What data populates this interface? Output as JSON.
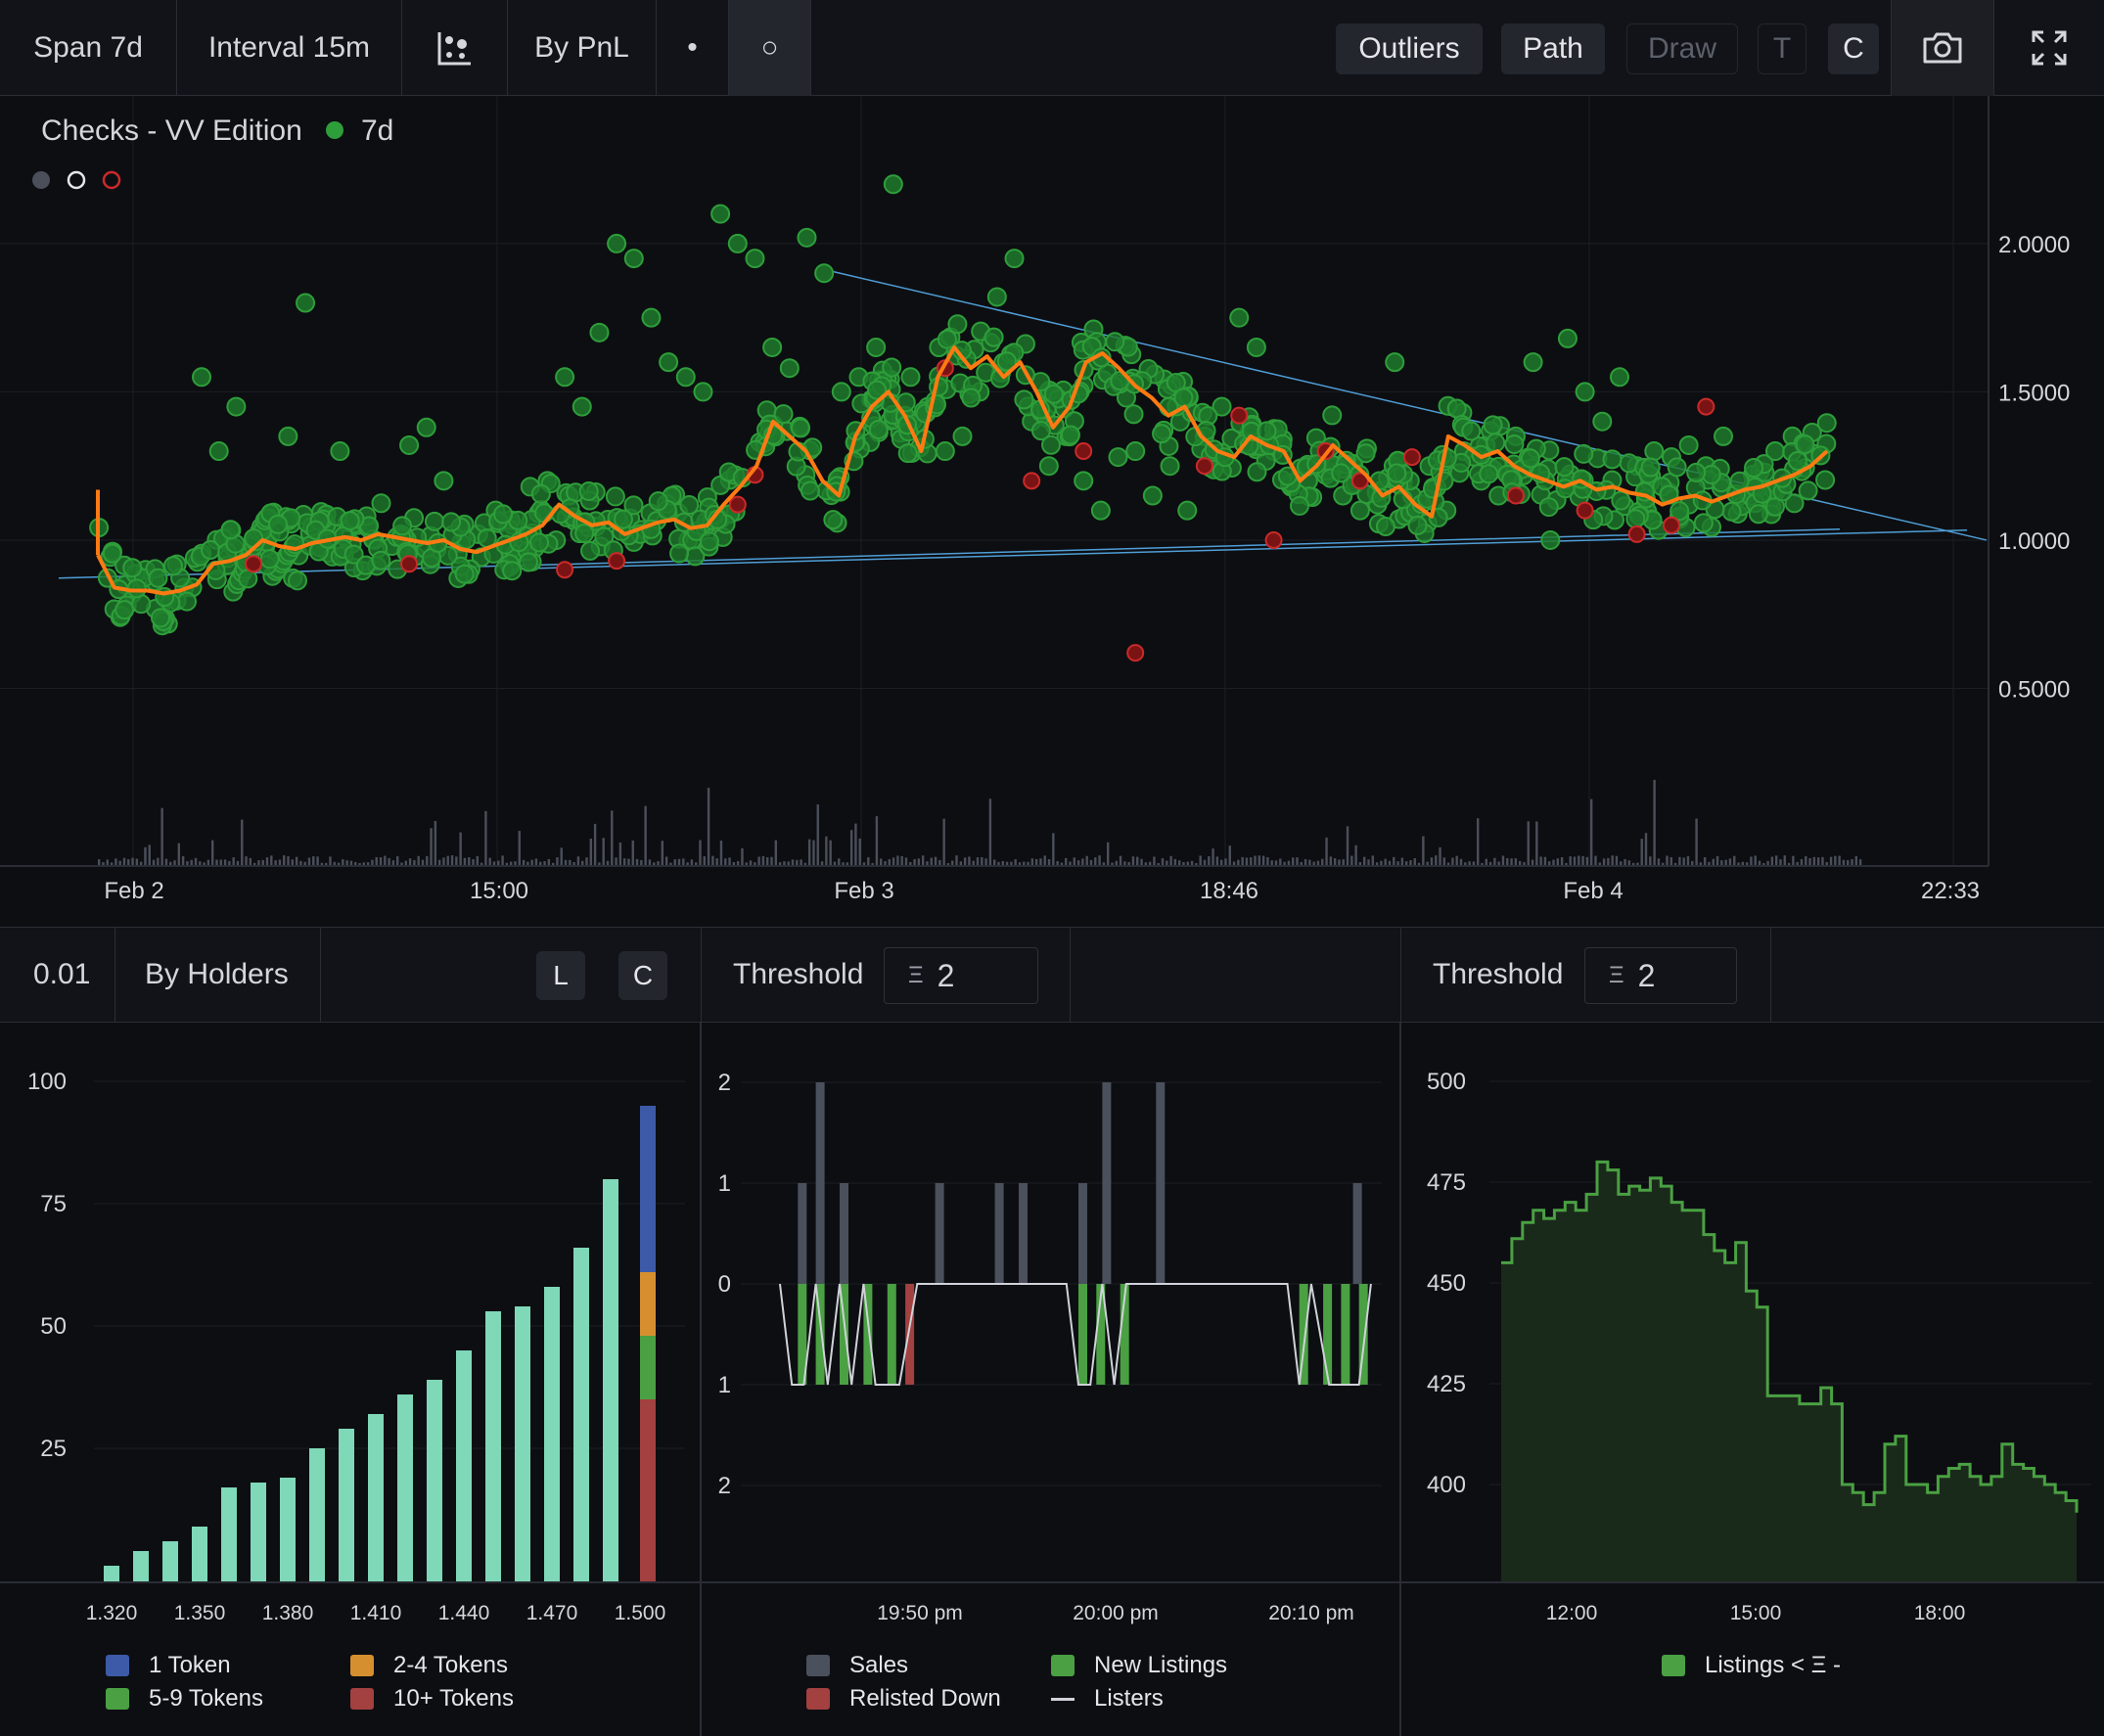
{
  "topbar": {
    "span": "Span 7d",
    "interval": "Interval 15m",
    "scatter_icon": "scatter-chart-icon",
    "sort": "By PnL",
    "dot_small": "•",
    "dot_ring": "○",
    "outliers": "Outliers",
    "path": "Path",
    "draw": "Draw",
    "t": "T",
    "c": "C",
    "camera_icon": "camera-icon",
    "expand_icon": "expand-icon"
  },
  "main_chart": {
    "collection": "Checks - VV Edition",
    "status_label": "7d",
    "colors": {
      "sale": "#2e9e3a",
      "outlier": "#c92a2a",
      "path": "#ff7a12",
      "trend": "#4f9ed6",
      "volume": "#4a4f5a"
    },
    "y_ticks": [
      "2.0000",
      "1.5000",
      "1.0000",
      "0.5000"
    ],
    "x_ticks": [
      "Feb 2",
      "15:00",
      "Feb 3",
      "18:46",
      "Feb 4",
      "22:33"
    ]
  },
  "holders_bar": {
    "step": "0.01",
    "mode": "By Holders",
    "l": "L",
    "c": "C"
  },
  "listings_bar": {
    "threshold_label": "Threshold",
    "threshold_symbol": "Ξ",
    "threshold_value": "2"
  },
  "listings_count_bar": {
    "threshold_label": "Threshold",
    "threshold_symbol": "Ξ",
    "threshold_value": "2"
  },
  "chart_data": [
    {
      "type": "scatter",
      "title": "Checks - VV Edition",
      "x_ticks": [
        "Feb 2",
        "15:00",
        "Feb 3",
        "18:46",
        "Feb 4",
        "22:33"
      ],
      "ylim": [
        0,
        2.3
      ],
      "y_ticks": [
        0.5,
        1.0,
        1.5,
        2.0
      ],
      "path": [
        0.95,
        0.84,
        0.83,
        0.83,
        0.82,
        0.83,
        0.85,
        0.92,
        0.93,
        0.95,
        1.0,
        0.98,
        0.97,
        0.99,
        1.0,
        1.01,
        1.0,
        1.02,
        1.01,
        1.0,
        0.99,
        1.0,
        0.97,
        0.96,
        0.98,
        1.0,
        1.02,
        1.05,
        1.12,
        1.08,
        1.05,
        1.06,
        1.02,
        1.04,
        1.06,
        1.07,
        1.04,
        1.05,
        1.12,
        1.18,
        1.25,
        1.4,
        1.35,
        1.3,
        1.2,
        1.15,
        1.35,
        1.45,
        1.5,
        1.42,
        1.3,
        1.55,
        1.65,
        1.58,
        1.62,
        1.55,
        1.6,
        1.5,
        1.38,
        1.45,
        1.6,
        1.63,
        1.58,
        1.52,
        1.48,
        1.42,
        1.45,
        1.35,
        1.3,
        1.28,
        1.35,
        1.32,
        1.3,
        1.2,
        1.25,
        1.32,
        1.27,
        1.22,
        1.15,
        1.18,
        1.12,
        1.08,
        1.35,
        1.32,
        1.28,
        1.3,
        1.25,
        1.22,
        1.2,
        1.18,
        1.2,
        1.17,
        1.18,
        1.16,
        1.15,
        1.12,
        1.14,
        1.15,
        1.13,
        1.15,
        1.17,
        1.18,
        1.2,
        1.22,
        1.25,
        1.3
      ],
      "sales_x": [
        0.02,
        0.04,
        0.05,
        0.06,
        0.07,
        0.08,
        0.09,
        0.1,
        0.11,
        0.12,
        0.13,
        0.14,
        0.15,
        0.16,
        0.17,
        0.18,
        0.19,
        0.2,
        0.21,
        0.22,
        0.23,
        0.24,
        0.25,
        0.26,
        0.27,
        0.28,
        0.29,
        0.3,
        0.31,
        0.32,
        0.33,
        0.34,
        0.35,
        0.36,
        0.37,
        0.38,
        0.39,
        0.4,
        0.41,
        0.42,
        0.43,
        0.44,
        0.45,
        0.46,
        0.47,
        0.48,
        0.49,
        0.5,
        0.51,
        0.52,
        0.53,
        0.54,
        0.55,
        0.56,
        0.57,
        0.58,
        0.59,
        0.6,
        0.61,
        0.62,
        0.63,
        0.64,
        0.65,
        0.66,
        0.67,
        0.68,
        0.69,
        0.7,
        0.71,
        0.72,
        0.73,
        0.74,
        0.75,
        0.76,
        0.77,
        0.78,
        0.79,
        0.8,
        0.81,
        0.82,
        0.83,
        0.84,
        0.85,
        0.86,
        0.87,
        0.88,
        0.89,
        0.9,
        0.91,
        0.92,
        0.93,
        0.94,
        0.95,
        0.96,
        0.97,
        0.98
      ],
      "sales_y": [
        0.82,
        0.8,
        0.84,
        1.55,
        1.3,
        1.45,
        1.0,
        1.02,
        1.35,
        1.8,
        1.0,
        1.3,
        1.05,
        1.0,
        0.98,
        1.32,
        1.38,
        1.2,
        0.99,
        1.02,
        1.1,
        1.05,
        1.18,
        1.2,
        1.55,
        1.45,
        1.7,
        2.0,
        1.95,
        1.75,
        1.6,
        1.55,
        1.5,
        2.1,
        2.0,
        1.95,
        1.65,
        1.58,
        2.02,
        1.9,
        1.5,
        1.55,
        1.65,
        2.2,
        1.55,
        1.45,
        1.3,
        1.35,
        1.5,
        1.82,
        1.95,
        1.4,
        1.25,
        1.35,
        1.2,
        1.1,
        1.28,
        1.3,
        1.15,
        1.25,
        1.1,
        1.35,
        1.45,
        1.75,
        1.65,
        1.3,
        1.18,
        1.2,
        1.22,
        1.15,
        1.1,
        1.12,
        1.6,
        1.15,
        1.25,
        1.1,
        1.3,
        1.2,
        1.15,
        1.35,
        1.6,
        1.0,
        1.68,
        1.5,
        1.4,
        1.55,
        1.25,
        1.3,
        1.28,
        1.32,
        1.25,
        1.35,
        1.15,
        1.2,
        1.3,
        1.35
      ],
      "outliers_x": [
        0.09,
        0.18,
        0.27,
        0.3,
        0.37,
        0.38,
        0.49,
        0.54,
        0.57,
        0.6,
        0.64,
        0.66,
        0.68,
        0.71,
        0.73,
        0.76,
        0.82,
        0.86,
        0.89,
        0.91,
        0.93
      ],
      "outliers_y": [
        0.92,
        0.92,
        0.9,
        0.93,
        1.12,
        1.22,
        1.58,
        1.2,
        1.3,
        0.62,
        1.25,
        1.42,
        1.0,
        1.3,
        1.2,
        1.28,
        1.15,
        1.1,
        1.02,
        1.05,
        1.45
      ],
      "volume_note": "volume bars along bottom"
    },
    {
      "type": "bar",
      "categories": [
        "1.320",
        "1.330",
        "1.340",
        "1.350",
        "1.360",
        "1.370",
        "1.380",
        "1.390",
        "1.400",
        "1.410",
        "1.420",
        "1.430",
        "1.440",
        "1.450",
        "1.460",
        "1.470",
        "1.480",
        "1.490",
        "1.500"
      ],
      "x_ticks": [
        "1.320",
        "1.350",
        "1.380",
        "1.410",
        "1.440",
        "1.470",
        "1.500"
      ],
      "values": [
        1,
        4,
        6,
        9,
        17,
        18,
        19,
        25,
        29,
        32,
        36,
        39,
        45,
        53,
        54,
        58,
        66,
        80,
        94
      ],
      "ylim": [
        0,
        100
      ],
      "y_ticks": [
        25,
        50,
        75,
        100
      ],
      "colors": {
        "bars": "#7fd8b8"
      },
      "last_stack": {
        "10+ Tokens": 35,
        "5-9 Tokens": 13,
        "2-4 Tokens": 13,
        "1 Token": 34
      },
      "legend": [
        {
          "name": "1 Token",
          "color": "#3c5aa8"
        },
        {
          "name": "2-4 Tokens",
          "color": "#d68f2e"
        },
        {
          "name": "5-9 Tokens",
          "color": "#4aa043"
        },
        {
          "name": "10+ Tokens",
          "color": "#a34040"
        }
      ]
    },
    {
      "type": "bar",
      "x_ticks": [
        "19:50 pm",
        "20:00 pm",
        "20:10 pm"
      ],
      "y_ticks": [
        "2",
        "1",
        "0",
        "1",
        "2"
      ],
      "ylim": [
        -2,
        2
      ],
      "sales_x": [
        0.03,
        0.06,
        0.1,
        0.26,
        0.36,
        0.4,
        0.5,
        0.54,
        0.63,
        0.96
      ],
      "sales_y": [
        1,
        2,
        1,
        1,
        1,
        1,
        1,
        2,
        2,
        1
      ],
      "new_listings_x": [
        0.03,
        0.06,
        0.1,
        0.14,
        0.18,
        0.5,
        0.53,
        0.57,
        0.87,
        0.91,
        0.94,
        0.97
      ],
      "relisted_x": [
        0.21
      ],
      "legend": [
        {
          "name": "Sales",
          "color": "#4a505c"
        },
        {
          "name": "New Listings",
          "color": "#4aa043"
        },
        {
          "name": "Relisted Down",
          "color": "#a34040"
        },
        {
          "name": "Listers",
          "color": "#cfd2d8"
        }
      ]
    },
    {
      "type": "area",
      "x_ticks": [
        "12:00",
        "15:00",
        "18:00"
      ],
      "y_ticks": [
        400,
        425,
        450,
        475,
        500
      ],
      "ylim": [
        376,
        500
      ],
      "values": [
        455,
        461,
        465,
        468,
        466,
        468,
        470,
        468,
        472,
        480,
        478,
        472,
        474,
        473,
        476,
        474,
        470,
        468,
        468,
        462,
        458,
        455,
        460,
        448,
        444,
        422,
        422,
        422,
        420,
        420,
        424,
        420,
        400,
        398,
        395,
        398,
        410,
        412,
        400,
        400,
        398,
        402,
        404,
        405,
        402,
        400,
        402,
        410,
        405,
        404,
        402,
        400,
        398,
        396,
        393
      ],
      "colors": {
        "line": "#4aa043",
        "fill": "#1a2a1a"
      },
      "legend": [
        {
          "name": "Listings < Ξ -",
          "color": "#4aa043"
        }
      ]
    }
  ]
}
